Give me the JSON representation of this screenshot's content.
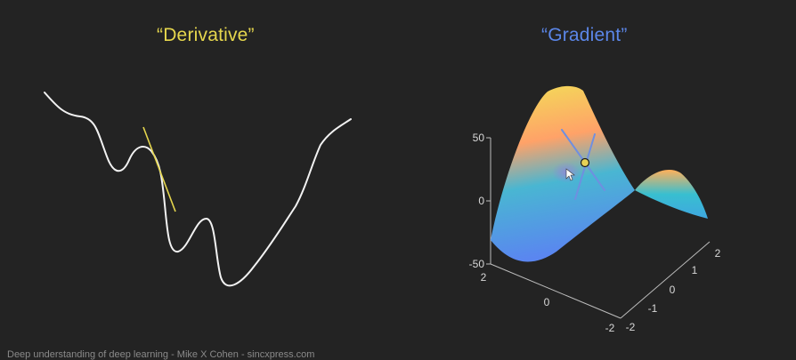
{
  "panels": {
    "left": {
      "title": "“Derivative”"
    },
    "right": {
      "title": "“Gradient”"
    }
  },
  "axes": {
    "z_ticks": [
      "50",
      "0",
      "-50"
    ],
    "x_ticks": [
      "2",
      "0",
      "-2"
    ],
    "y_ticks": [
      "2",
      "1",
      "0",
      "-1",
      "-2"
    ]
  },
  "footer": {
    "text": "Deep understanding of deep learning  -  Mike X Cohen  -  sincxpress.com"
  },
  "colors": {
    "derivative_accent": "#e5d64d",
    "gradient_accent": "#5b86e8",
    "curve": "#f2f2f2",
    "background": "#232323"
  },
  "icons": {
    "cursor": "mouse-pointer-icon",
    "point": "gradient-point-marker"
  }
}
